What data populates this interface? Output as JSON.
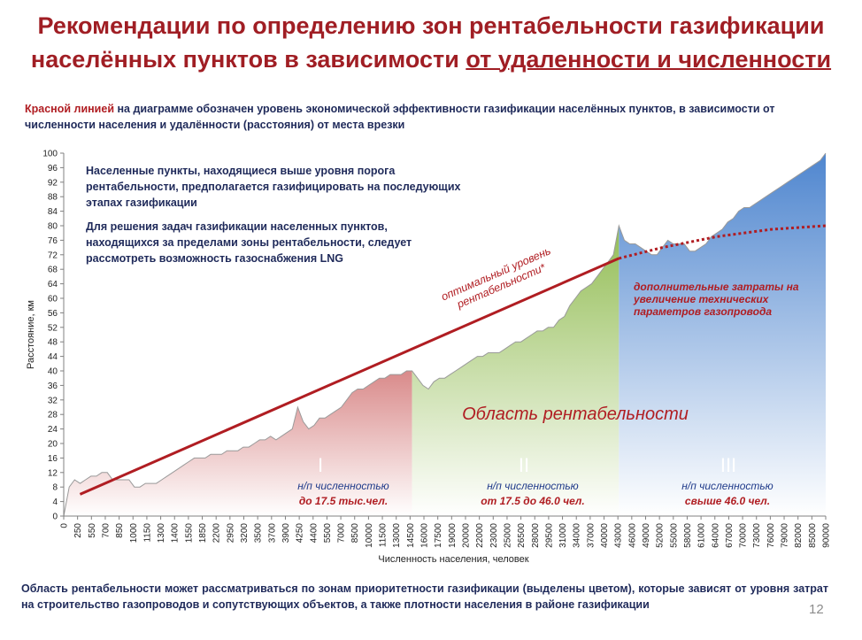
{
  "page": {
    "title_line1": "Рекомендации по определению зон рентабельности газификации",
    "title_line2_plain": "населённых пунктов в зависимости ",
    "title_line2_underlined": "от удаленности и численности",
    "subtitle_red": "Красной линией",
    "subtitle_rest": " на диаграмме  обозначен уровень экономической эффективности газификации населённых пунктов, в зависимости от численности населения и удалённости (расстояния) от места врезки",
    "note1": "Населенные пункты, находящиеся выше уровня порога рентабельности, предполагается газифицировать  на последующих этапах  газификации",
    "note2": "Для решения задач газификации  населенных пунктов, находящихся за пределами зоны рентабельности, следует рассмотреть возможность газоснабжения LNG",
    "footer": "Область рентабельности может рассматриваться по зонам приоритетности газификации (выделены цветом),  которые зависят от уровня затрат на строительство газопроводов и сопутствующих объектов, а также плотности населения в районе газификации",
    "page_number": "12"
  },
  "chart_data": {
    "type": "area",
    "xlabel": "Численность населения, человек",
    "ylabel": "Расстояние, км",
    "ylim": [
      0,
      100
    ],
    "ytick_step": 4,
    "grid": false,
    "x_ticks": [
      "0",
      "250",
      "550",
      "700",
      "850",
      "1000",
      "1150",
      "1300",
      "1400",
      "1550",
      "1850",
      "2200",
      "2950",
      "3200",
      "3500",
      "3700",
      "3900",
      "4250",
      "4400",
      "5500",
      "7000",
      "8500",
      "10000",
      "11500",
      "13000",
      "14500",
      "16000",
      "17500",
      "19000",
      "20000",
      "22000",
      "23000",
      "25000",
      "26500",
      "28000",
      "29500",
      "31000",
      "34000",
      "37000",
      "40000",
      "43000",
      "46000",
      "49000",
      "52000",
      "55000",
      "58000",
      "61000",
      "64000",
      "67000",
      "70000",
      "73000",
      "76000",
      "79000",
      "82000",
      "85000",
      "90000"
    ],
    "series": [
      {
        "name": "",
        "points": [
          [
            0,
            0
          ],
          [
            1,
            8
          ],
          [
            2,
            10
          ],
          [
            3,
            9
          ],
          [
            4,
            10
          ],
          [
            5,
            11
          ],
          [
            6,
            11
          ],
          [
            7,
            12
          ],
          [
            8,
            12
          ],
          [
            9,
            10
          ],
          [
            10,
            10
          ],
          [
            11,
            10
          ],
          [
            12,
            10
          ],
          [
            13,
            8
          ],
          [
            14,
            8
          ],
          [
            15,
            9
          ],
          [
            16,
            9
          ],
          [
            17,
            9
          ],
          [
            18,
            10
          ],
          [
            19,
            11
          ],
          [
            20,
            12
          ],
          [
            21,
            13
          ],
          [
            22,
            14
          ],
          [
            23,
            15
          ],
          [
            24,
            16
          ],
          [
            25,
            16
          ],
          [
            26,
            16
          ],
          [
            27,
            17
          ],
          [
            28,
            17
          ],
          [
            29,
            17
          ],
          [
            30,
            18
          ],
          [
            31,
            18
          ],
          [
            32,
            18
          ],
          [
            33,
            19
          ],
          [
            34,
            19
          ],
          [
            35,
            20
          ],
          [
            36,
            21
          ],
          [
            37,
            21
          ],
          [
            38,
            22
          ],
          [
            39,
            21
          ],
          [
            40,
            22
          ],
          [
            41,
            23
          ],
          [
            42,
            24
          ],
          [
            43,
            30
          ],
          [
            44,
            26
          ],
          [
            45,
            24
          ],
          [
            46,
            25
          ],
          [
            47,
            27
          ],
          [
            48,
            27
          ],
          [
            49,
            28
          ],
          [
            50,
            29
          ],
          [
            51,
            30
          ],
          [
            52,
            32
          ],
          [
            53,
            34
          ],
          [
            54,
            35
          ],
          [
            55,
            35
          ],
          [
            56,
            36
          ],
          [
            57,
            37
          ],
          [
            58,
            38
          ],
          [
            59,
            38
          ],
          [
            60,
            39
          ],
          [
            61,
            39
          ],
          [
            62,
            39
          ],
          [
            63,
            40
          ],
          [
            64,
            40
          ],
          [
            65,
            38
          ],
          [
            66,
            36
          ],
          [
            67,
            35
          ],
          [
            68,
            37
          ],
          [
            69,
            38
          ],
          [
            70,
            38
          ],
          [
            71,
            39
          ],
          [
            72,
            40
          ],
          [
            73,
            41
          ],
          [
            74,
            42
          ],
          [
            75,
            43
          ],
          [
            76,
            44
          ],
          [
            77,
            44
          ],
          [
            78,
            45
          ],
          [
            79,
            45
          ],
          [
            80,
            45
          ],
          [
            81,
            46
          ],
          [
            82,
            47
          ],
          [
            83,
            48
          ],
          [
            84,
            48
          ],
          [
            85,
            49
          ],
          [
            86,
            50
          ],
          [
            87,
            51
          ],
          [
            88,
            51
          ],
          [
            89,
            52
          ],
          [
            90,
            52
          ],
          [
            91,
            54
          ],
          [
            92,
            55
          ],
          [
            93,
            58
          ],
          [
            94,
            60
          ],
          [
            95,
            62
          ],
          [
            96,
            63
          ],
          [
            97,
            64
          ],
          [
            98,
            66
          ],
          [
            99,
            68
          ],
          [
            100,
            70
          ],
          [
            101,
            72
          ],
          [
            102,
            80
          ],
          [
            103,
            76
          ],
          [
            104,
            75
          ],
          [
            105,
            75
          ],
          [
            106,
            74
          ],
          [
            107,
            73
          ],
          [
            108,
            72
          ],
          [
            109,
            72
          ],
          [
            110,
            74
          ],
          [
            111,
            76
          ],
          [
            112,
            75
          ],
          [
            113,
            75
          ],
          [
            114,
            75
          ],
          [
            115,
            73
          ],
          [
            116,
            73
          ],
          [
            117,
            74
          ],
          [
            118,
            75
          ],
          [
            119,
            77
          ],
          [
            120,
            78
          ],
          [
            121,
            79
          ],
          [
            122,
            81
          ],
          [
            123,
            82
          ],
          [
            124,
            84
          ],
          [
            125,
            85
          ],
          [
            126,
            85
          ],
          [
            127,
            86
          ],
          [
            128,
            87
          ],
          [
            129,
            88
          ],
          [
            130,
            89
          ],
          [
            131,
            90
          ],
          [
            132,
            91
          ],
          [
            133,
            92
          ],
          [
            134,
            93
          ],
          [
            135,
            94
          ],
          [
            136,
            95
          ],
          [
            137,
            96
          ],
          [
            138,
            97
          ],
          [
            139,
            98
          ],
          [
            140,
            100
          ]
        ]
      }
    ],
    "zones": [
      {
        "name": "I",
        "x_range": [
          0,
          64
        ],
        "label_line1": "н/п численностью",
        "label_line2": "до 17.5  тыс.чел.",
        "color": "#d98a8a"
      },
      {
        "name": "II",
        "x_range": [
          64,
          102
        ],
        "label_line1": "н/п численностью",
        "label_line2": "от 17.5  до 46.0  чел.",
        "color": "#93bd55"
      },
      {
        "name": "III",
        "x_range": [
          102,
          140
        ],
        "label_line1": "н/п численностью",
        "label_line2": "свыше 46.0  чел.",
        "color": "#4f86cf"
      }
    ],
    "threshold_line": {
      "name": "оптимальный уровень рентабельности*",
      "label_line1": "оптимальный уровень",
      "label_line2": "рентабельности*",
      "solid": [
        [
          3,
          6
        ],
        [
          102,
          71
        ]
      ],
      "dotted": [
        [
          102,
          71
        ],
        [
          110,
          74
        ],
        [
          120,
          77
        ],
        [
          130,
          79
        ],
        [
          140,
          80
        ]
      ],
      "color": "#b01d22"
    },
    "annotations": {
      "profit_area": "Область рентабельности",
      "extra_costs": "дополнительные  затраты на увеличение  технических параметров  газопровода"
    }
  }
}
